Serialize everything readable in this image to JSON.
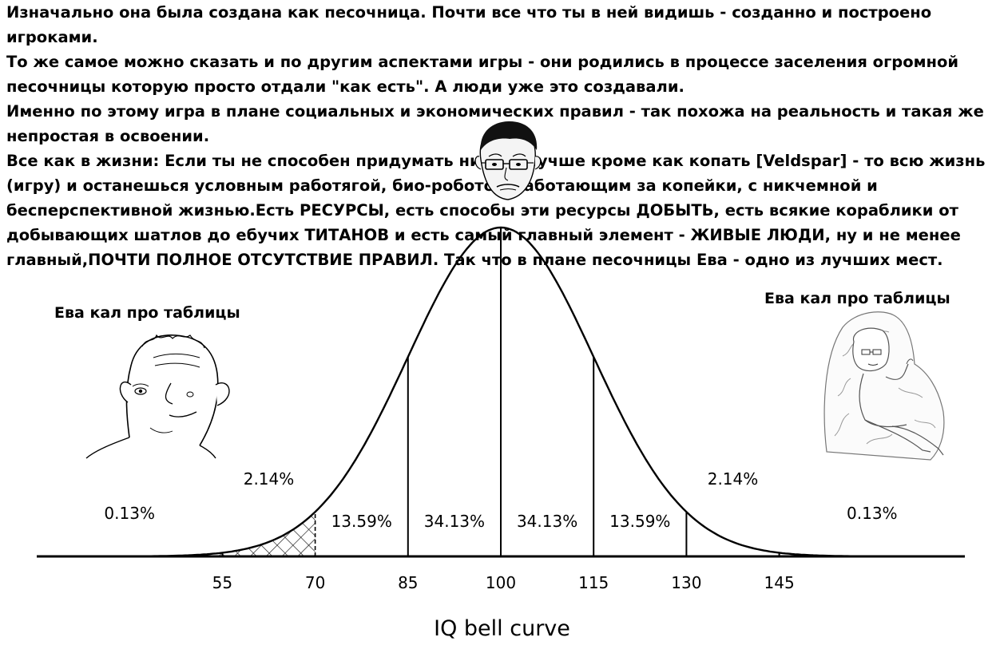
{
  "meme": {
    "paragraphs": [
      "Изначально она была создана как песочница. Почти все что ты в ней видишь - созданно и построено игроками.",
      "То же самое можно сказать и по другим аспектами игры - они родились в процессе заселения огромной песочницы которую просто отдали \"как есть\". А люди уже это создавали.",
      "Именно по этому игра в плане социальных и экономических правил - так похожа на реальность и такая же непростая в освоении.",
      "Все как в жизни: Если ты не способен придумать ничего лучше кроме как копать [Veldspar] - то всю жизнь (игру) и останешься условным работягой, био-роботом работающим за копейки, с никчемной и бесперспективной жизнью.Есть РЕСУРСЫ, есть способы эти ресурсы ДОБЫТЬ, есть всякие кораблики от добывающих шатлов до ебучих ТИТАНОВ и есть самый главный элемент - ЖИВЫЕ ЛЮДИ, ну и не менее главный,ПОЧТИ ПОЛНОЕ ОТСУТСТВИЕ ПРАВИЛ. Так что в плане песочницы Ева - одно из лучших мест."
    ],
    "caption_left": "Ева кал про таблицы",
    "caption_right": "Ева кал про таблицы",
    "characters": {
      "left": "wojak-brainlet-icon",
      "center": "wojak-glasses-icon",
      "right": "galaxy-brain-wojak-icon"
    }
  },
  "chart_data": {
    "type": "area",
    "title": "IQ bell curve",
    "distribution": {
      "mean": 100,
      "sd": 15
    },
    "xlim": [
      25,
      175
    ],
    "boundaries": [
      55,
      70,
      85,
      100,
      115,
      130,
      145
    ],
    "x_tick_labels": [
      "55",
      "70",
      "85",
      "100",
      "115",
      "130",
      "145"
    ],
    "regions": [
      {
        "label": "0.13%",
        "x": 40
      },
      {
        "label": "2.14%",
        "x": 62.5
      },
      {
        "label": "13.59%",
        "x": 77.5
      },
      {
        "label": "34.13%",
        "x": 92.5
      },
      {
        "label": "34.13%",
        "x": 107.5
      },
      {
        "label": "13.59%",
        "x": 122.5
      },
      {
        "label": "2.14%",
        "x": 137.5
      },
      {
        "label": "0.13%",
        "x": 160
      }
    ],
    "hatched_ranges": [
      [
        25,
        70
      ]
    ],
    "grid": false,
    "legend": "none"
  }
}
